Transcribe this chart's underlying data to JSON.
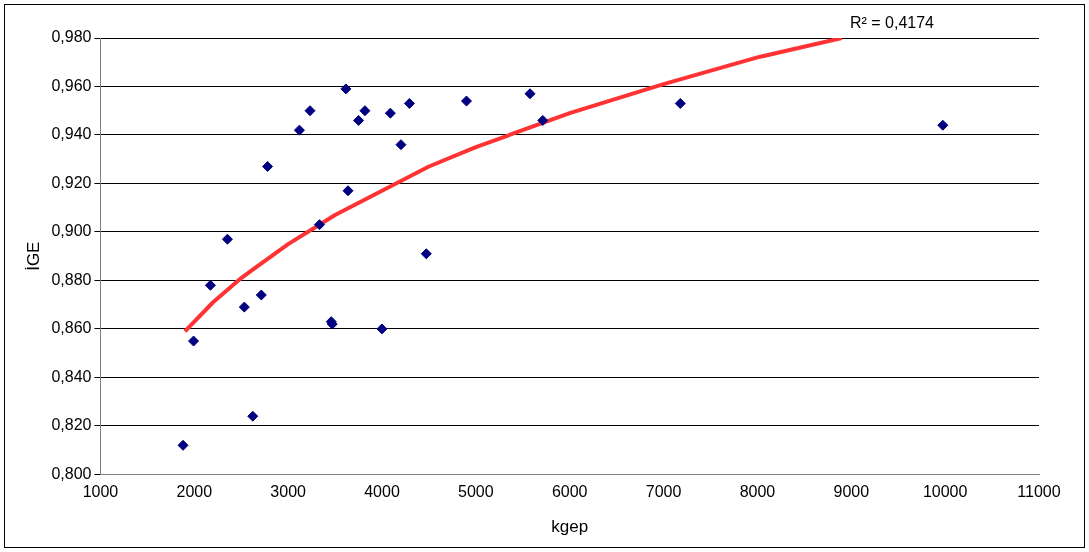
{
  "chart_data": {
    "type": "scatter",
    "xlabel": "kgep",
    "ylabel": "İGE",
    "annotations": [
      "R² = 0,4174"
    ],
    "xlim": [
      1000,
      11000
    ],
    "xticks": [
      1000,
      2000,
      3000,
      4000,
      5000,
      6000,
      7000,
      8000,
      9000,
      10000,
      11000
    ],
    "ylim": [
      0.8,
      0.98
    ],
    "yticks": [
      {
        "value": 0.8,
        "label": "0,800"
      },
      {
        "value": 0.82,
        "label": "0,820"
      },
      {
        "value": 0.84,
        "label": "0,840"
      },
      {
        "value": 0.86,
        "label": "0,860"
      },
      {
        "value": 0.88,
        "label": "0,880"
      },
      {
        "value": 0.9,
        "label": "0,900"
      },
      {
        "value": 0.92,
        "label": "0,920"
      },
      {
        "value": 0.94,
        "label": "0,940"
      },
      {
        "value": 0.96,
        "label": "0,960"
      },
      {
        "value": 0.98,
        "label": "0,980"
      }
    ],
    "grid": "y",
    "legend": false,
    "series": [
      {
        "marker": "diamond",
        "color": "#000080",
        "x": [
          1880,
          1992,
          2172,
          2353,
          2533,
          2623,
          2714,
          2781,
          3120,
          3233,
          3334,
          3459,
          3470,
          3615,
          3638,
          3750,
          3818,
          3999,
          4089,
          4202,
          4292,
          4472,
          4900,
          5577,
          5713,
          7178,
          9975
        ],
        "values": [
          0.812,
          0.855,
          0.878,
          0.897,
          0.869,
          0.824,
          0.874,
          0.927,
          0.942,
          0.95,
          0.903,
          0.863,
          0.862,
          0.959,
          0.917,
          0.946,
          0.95,
          0.86,
          0.949,
          0.936,
          0.953,
          0.891,
          0.954,
          0.957,
          0.946,
          0.953,
          0.944
        ]
      },
      {
        "type": "line",
        "marker": "none",
        "color": "#ff3333",
        "line_style": "solid",
        "x": [
          1900,
          2200,
          2500,
          3000,
          3500,
          4000,
          4500,
          5000,
          6000,
          7000,
          8000,
          8900
        ],
        "values": [
          0.859,
          0.871,
          0.881,
          0.895,
          0.907,
          0.917,
          0.927,
          0.935,
          0.949,
          0.961,
          0.972,
          0.98
        ]
      }
    ]
  }
}
